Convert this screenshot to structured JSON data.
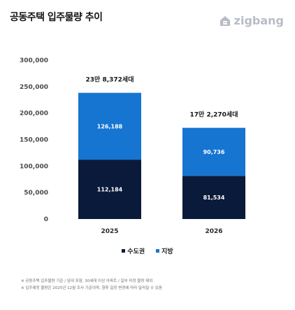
{
  "header": {
    "title": "공동주택 입주물량 추이",
    "brand_name": "zigbang"
  },
  "chart_data": {
    "type": "bar",
    "stacked": true,
    "categories": [
      "2025",
      "2026"
    ],
    "series": [
      {
        "name": "수도권",
        "color": "#0a1a3a",
        "values": [
          112184,
          81534
        ],
        "labels": [
          "112,184",
          "81,534"
        ]
      },
      {
        "name": "지방",
        "color": "#1675d1",
        "values": [
          126188,
          90736
        ],
        "labels": [
          "126,188",
          "90,736"
        ]
      }
    ],
    "totals": [
      "23만 8,372세대",
      "17만 2,270세대"
    ],
    "y_ticks": [
      "0",
      "50,000",
      "100,000",
      "150,000",
      "200,000",
      "250,000",
      "300,000"
    ],
    "ylim": [
      0,
      300000
    ],
    "grid": false,
    "legend_position": "bottom-center"
  },
  "footnotes": [
    "※ 공동주택 입주물량 기준 / 임대 포함, 30세대 이상 아파트 / 일부 미정 물량 제외",
    "※ 입주예정 물량은 2025년 12월 조사 기준이며, 향후 일정 변경에 따라 달라질 수 있음"
  ],
  "colors": {
    "brand_gray": "#b7bcc6"
  }
}
